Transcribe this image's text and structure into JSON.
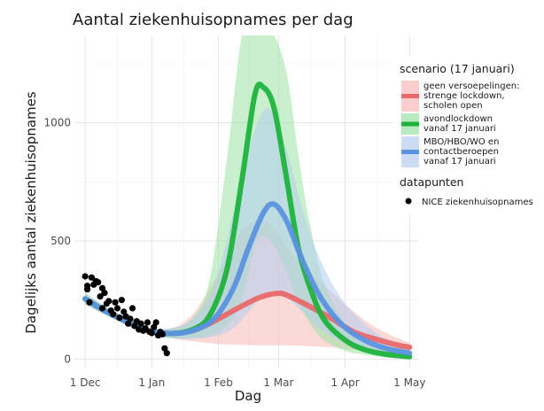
{
  "chart_data": {
    "type": "line",
    "title": "Aantal ziekenhuisopnames per dag",
    "xlabel": "Dag",
    "ylabel": "Dagelijks aantal ziekenhuisopnames",
    "x_axis_type": "date",
    "xlim": [
      "2020-11-26",
      "2021-05-05"
    ],
    "ylim": [
      -40,
      1370
    ],
    "x_ticks": [
      {
        "date": "2020-12-01",
        "label": "1 Dec"
      },
      {
        "date": "2021-01-01",
        "label": "1 Jan"
      },
      {
        "date": "2021-02-01",
        "label": "1 Feb"
      },
      {
        "date": "2021-03-01",
        "label": "1 Mar"
      },
      {
        "date": "2021-04-01",
        "label": "1 Apr"
      },
      {
        "date": "2021-05-01",
        "label": "1 May"
      }
    ],
    "y_ticks": [
      {
        "value": 0,
        "label": "0"
      },
      {
        "value": 500,
        "label": "500"
      },
      {
        "value": 1000,
        "label": "1000"
      }
    ],
    "grid": true,
    "legend_position": "right",
    "legend": {
      "scenario_title": "scenario (17 januari)",
      "scenario_entries": [
        {
          "lines": [
            "geen versoepelingen:",
            "strenge lockdown,",
            "scholen open"
          ],
          "color": "#e8686a",
          "fill": "#f8b9b6"
        },
        {
          "lines": [
            "avondlockdown",
            "vanaf 17 januari"
          ],
          "color": "#1db33c",
          "fill": "#9ae3a2"
        },
        {
          "lines": [
            "MBO/HBO/WO en",
            "contactberoepen",
            "vanaf 17 januari"
          ],
          "color": "#5b92e0",
          "fill": "#b5cdf0"
        }
      ],
      "data_title": "datapunten",
      "data_entries": [
        {
          "label": "NICE ziekenhuisopnames"
        }
      ]
    },
    "series": [
      {
        "color": "#e8686a",
        "fill": "#f8b9b6",
        "x": [
          "2020-12-01",
          "2020-12-10",
          "2020-12-20",
          "2020-12-30",
          "2021-01-10",
          "2021-01-20",
          "2021-01-30",
          "2021-02-10",
          "2021-02-20",
          "2021-02-28",
          "2021-03-05",
          "2021-03-15",
          "2021-03-25",
          "2021-04-05",
          "2021-04-15",
          "2021-04-25",
          "2021-05-01"
        ],
        "y": [
          255,
          205,
          160,
          120,
          108,
          120,
          160,
          215,
          260,
          278,
          270,
          225,
          175,
          115,
          85,
          60,
          50
        ],
        "lower": [
          230,
          190,
          145,
          108,
          88,
          75,
          65,
          60,
          58,
          58,
          58,
          55,
          50,
          40,
          30,
          25,
          22
        ],
        "upper": [
          280,
          225,
          178,
          135,
          130,
          190,
          330,
          520,
          590,
          540,
          470,
          370,
          290,
          200,
          135,
          90,
          70
        ]
      },
      {
        "color": "#1db33c",
        "fill": "#9ae3a2",
        "x": [
          "2020-12-01",
          "2020-12-10",
          "2020-12-20",
          "2020-12-30",
          "2021-01-10",
          "2021-01-20",
          "2021-01-28",
          "2021-02-05",
          "2021-02-12",
          "2021-02-18",
          "2021-02-22",
          "2021-02-27",
          "2021-03-05",
          "2021-03-10",
          "2021-03-15",
          "2021-03-22",
          "2021-04-01",
          "2021-04-10",
          "2021-04-20",
          "2021-05-01"
        ],
        "y": [
          255,
          205,
          160,
          120,
          108,
          125,
          185,
          380,
          760,
          1120,
          1150,
          1060,
          750,
          480,
          320,
          170,
          80,
          40,
          20,
          10
        ],
        "lower": [
          230,
          190,
          145,
          108,
          88,
          90,
          100,
          140,
          250,
          480,
          520,
          480,
          360,
          240,
          160,
          80,
          35,
          18,
          8,
          4
        ],
        "upper": [
          280,
          225,
          178,
          135,
          130,
          175,
          340,
          850,
          1370,
          1370,
          1370,
          1370,
          1200,
          880,
          600,
          330,
          150,
          70,
          35,
          20
        ]
      },
      {
        "color": "#5b92e0",
        "fill": "#b5cdf0",
        "x": [
          "2020-12-01",
          "2020-12-10",
          "2020-12-20",
          "2020-12-30",
          "2021-01-10",
          "2021-01-20",
          "2021-01-30",
          "2021-02-08",
          "2021-02-15",
          "2021-02-22",
          "2021-02-27",
          "2021-03-05",
          "2021-03-12",
          "2021-03-20",
          "2021-03-30",
          "2021-04-10",
          "2021-04-20",
          "2021-05-01"
        ],
        "y": [
          255,
          205,
          160,
          120,
          108,
          120,
          170,
          300,
          470,
          620,
          655,
          580,
          420,
          270,
          150,
          80,
          45,
          25
        ],
        "lower": [
          230,
          190,
          145,
          108,
          88,
          85,
          95,
          130,
          200,
          270,
          290,
          260,
          200,
          130,
          75,
          40,
          22,
          12
        ],
        "upper": [
          280,
          225,
          178,
          135,
          130,
          170,
          310,
          620,
          880,
          1050,
          1030,
          880,
          640,
          430,
          260,
          150,
          85,
          50
        ]
      }
    ],
    "points": {
      "name": "NICE ziekenhuisopnames",
      "x": [
        "2020-12-01",
        "2020-12-02",
        "2020-12-02",
        "2020-12-03",
        "2020-12-04",
        "2020-12-05",
        "2020-12-06",
        "2020-12-07",
        "2020-12-08",
        "2020-12-09",
        "2020-12-09",
        "2020-12-10",
        "2020-12-11",
        "2020-12-12",
        "2020-12-13",
        "2020-12-14",
        "2020-12-15",
        "2020-12-16",
        "2020-12-17",
        "2020-12-18",
        "2020-12-19",
        "2020-12-20",
        "2020-12-21",
        "2020-12-22",
        "2020-12-23",
        "2020-12-24",
        "2020-12-25",
        "2020-12-26",
        "2020-12-27",
        "2020-12-28",
        "2020-12-29",
        "2020-12-30",
        "2020-12-31",
        "2021-01-01",
        "2021-01-02",
        "2021-01-03",
        "2021-01-04",
        "2021-01-05",
        "2021-01-06",
        "2021-01-07",
        "2021-01-08"
      ],
      "y": [
        350,
        295,
        310,
        240,
        345,
        315,
        330,
        325,
        265,
        300,
        215,
        280,
        235,
        245,
        205,
        190,
        240,
        215,
        175,
        250,
        200,
        180,
        150,
        170,
        215,
        140,
        160,
        125,
        150,
        120,
        130,
        155,
        115,
        110,
        135,
        155,
        100,
        115,
        105,
        45,
        25
      ]
    }
  }
}
